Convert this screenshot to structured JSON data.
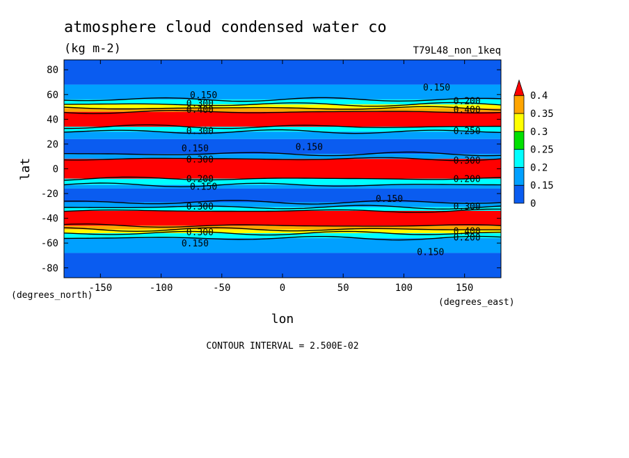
{
  "header": {
    "title": "atmosphere cloud condensed water co",
    "units": "(kg m-2)",
    "run_id": "T79L48_non_1keq"
  },
  "footer": {
    "contour_interval": "CONTOUR INTERVAL = 2.500E-02"
  },
  "chart_data": {
    "type": "heatmap",
    "xlabel": "lon",
    "ylabel": "lat",
    "x_units_label": "(degrees_east)",
    "y_units_label": "(degrees_north)",
    "xlim": [
      -180,
      180
    ],
    "ylim": [
      -88,
      88
    ],
    "x_ticks": [
      -150,
      -100,
      -50,
      0,
      50,
      100,
      150
    ],
    "y_ticks": [
      -80,
      -60,
      -40,
      -20,
      0,
      20,
      40,
      60,
      80
    ],
    "colorbar": {
      "labels": [
        "0",
        "0.15",
        "0.2",
        "0.25",
        "0.3",
        "0.35",
        "0.4"
      ],
      "levels": [
        0,
        0.15,
        0.2,
        0.25,
        0.3,
        0.35,
        0.4
      ],
      "colors": [
        "#0a5cf0",
        "#00a0ff",
        "#00ffff",
        "#00e000",
        "#ffff00",
        "#ffa500",
        "#ff0000"
      ],
      "over_color": "#ff0000"
    },
    "bands": [
      {
        "lat_from": 88,
        "lat_to": 68,
        "level": 0
      },
      {
        "lat_from": 68,
        "lat_to": 56,
        "level": 0.15
      },
      {
        "lat_from": 56,
        "lat_to": 52,
        "level": 0.2
      },
      {
        "lat_from": 52,
        "lat_to": 49,
        "level": 0.3
      },
      {
        "lat_from": 49,
        "lat_to": 46,
        "level": 0.35
      },
      {
        "lat_from": 46,
        "lat_to": 34,
        "level": 0.4
      },
      {
        "lat_from": 34,
        "lat_to": 30,
        "level": 0.2
      },
      {
        "lat_from": 30,
        "lat_to": 24,
        "level": 0.15
      },
      {
        "lat_from": 24,
        "lat_to": 12,
        "level": 0
      },
      {
        "lat_from": 12,
        "lat_to": 8,
        "level": 0.15
      },
      {
        "lat_from": 8,
        "lat_to": -8,
        "level": 0.4
      },
      {
        "lat_from": -8,
        "lat_to": -13,
        "level": 0.2
      },
      {
        "lat_from": -13,
        "lat_to": -16,
        "level": 0.15
      },
      {
        "lat_from": -16,
        "lat_to": -27,
        "level": 0
      },
      {
        "lat_from": -27,
        "lat_to": -31,
        "level": 0.15
      },
      {
        "lat_from": -31,
        "lat_to": -34,
        "level": 0.2
      },
      {
        "lat_from": -34,
        "lat_to": -46,
        "level": 0.4
      },
      {
        "lat_from": -46,
        "lat_to": -49,
        "level": 0.35
      },
      {
        "lat_from": -49,
        "lat_to": -52,
        "level": 0.3
      },
      {
        "lat_from": -52,
        "lat_to": -56,
        "level": 0.2
      },
      {
        "lat_from": -56,
        "lat_to": -68,
        "level": 0.15
      },
      {
        "lat_from": -68,
        "lat_to": -88,
        "level": 0
      }
    ],
    "contour_lines_lat": [
      56,
      52,
      49,
      46,
      34,
      30,
      12,
      8,
      -8,
      -13,
      -27,
      -31,
      -34,
      -46,
      -49,
      -52,
      -56
    ],
    "contour_labels": [
      {
        "text": "0.150",
        "lon": -65,
        "lat": 60
      },
      {
        "text": "0.150",
        "lon": 127,
        "lat": 66
      },
      {
        "text": "0.200",
        "lon": 152,
        "lat": 55
      },
      {
        "text": "0.300",
        "lon": -68,
        "lat": 53
      },
      {
        "text": "0.400",
        "lon": -68,
        "lat": 48
      },
      {
        "text": "0.400",
        "lon": 152,
        "lat": 48
      },
      {
        "text": "0.300",
        "lon": -68,
        "lat": 31
      },
      {
        "text": "0.250",
        "lon": 152,
        "lat": 31
      },
      {
        "text": "0.150",
        "lon": -72,
        "lat": 17
      },
      {
        "text": "0.150",
        "lon": 22,
        "lat": 18
      },
      {
        "text": "0.300",
        "lon": -68,
        "lat": 8
      },
      {
        "text": "0.300",
        "lon": 152,
        "lat": 7
      },
      {
        "text": "0.200",
        "lon": -68,
        "lat": -8
      },
      {
        "text": "0.200",
        "lon": 152,
        "lat": -8
      },
      {
        "text": "0.150",
        "lon": -65,
        "lat": -14
      },
      {
        "text": "0.150",
        "lon": 88,
        "lat": -24
      },
      {
        "text": "0.300",
        "lon": -68,
        "lat": -30
      },
      {
        "text": "0.300",
        "lon": 152,
        "lat": -30
      },
      {
        "text": "0.300",
        "lon": -68,
        "lat": -51
      },
      {
        "text": "0.400",
        "lon": 152,
        "lat": -50
      },
      {
        "text": "0.200",
        "lon": 152,
        "lat": -55
      },
      {
        "text": "0.150",
        "lon": -72,
        "lat": -60
      },
      {
        "text": "0.150",
        "lon": 122,
        "lat": -67
      }
    ]
  }
}
